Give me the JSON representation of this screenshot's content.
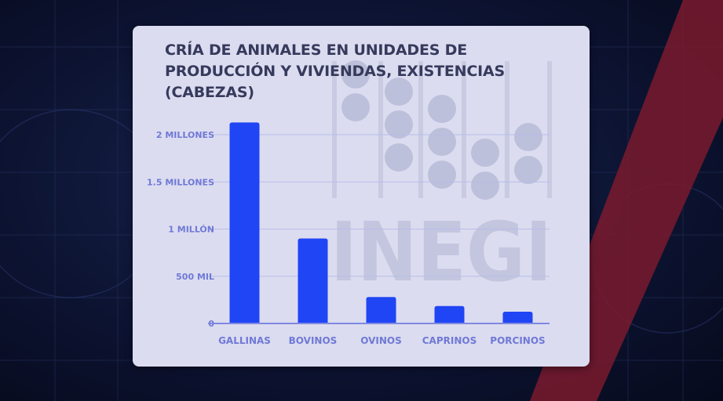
{
  "watermark": {
    "text": "INEGI"
  },
  "chart_data": {
    "type": "bar",
    "title": "CRÍA DE ANIMALES EN UNIDADES DE PRODUCCIÓN Y VIVIENDAS, EXISTENCIAS (CABEZAS)",
    "categories": [
      "GALLINAS",
      "BOVINOS",
      "OVINOS",
      "CAPRINOS",
      "PORCINOS"
    ],
    "values": [
      2130000,
      900000,
      280000,
      185000,
      125000
    ],
    "ylim": [
      0,
      2000000
    ],
    "yticks": [
      {
        "value": 0,
        "label": "0"
      },
      {
        "value": 500000,
        "label": "500 MIL"
      },
      {
        "value": 1000000,
        "label": "1 MILLÓN"
      },
      {
        "value": 1500000,
        "label": "1.5 MILLONES"
      },
      {
        "value": 2000000,
        "label": "2 MILLONES"
      }
    ],
    "grid": true,
    "colors": {
      "bar": "#1f45f4",
      "labels": "#6f79d6",
      "grid": "#b7bde8"
    }
  }
}
